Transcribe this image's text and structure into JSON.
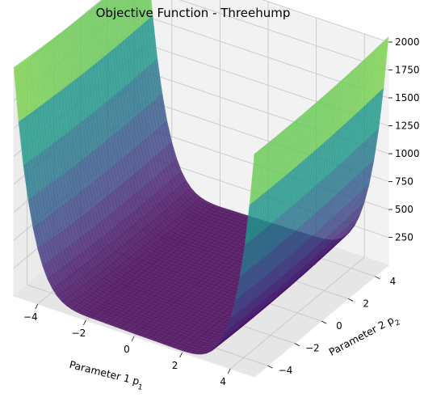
{
  "chart_data": {
    "type": "surface",
    "title": "Objective Function - Threehump",
    "xlabel": "Parameter 1 p",
    "xlabel_subscript": "1",
    "ylabel": "Parameter 2 p",
    "ylabel_subscript": "2",
    "zlabel": "",
    "xlim": [
      -5,
      5
    ],
    "ylim": [
      -5,
      5
    ],
    "zlim": [
      0,
      2000
    ],
    "x_ticks": [
      -4,
      -2,
      0,
      2,
      4
    ],
    "x_tick_labels": [
      "−4",
      "−2",
      "0",
      "2",
      "4"
    ],
    "y_ticks": [
      -4,
      -2,
      0,
      2,
      4
    ],
    "y_tick_labels": [
      "−4",
      "−2",
      "0",
      "2",
      "4"
    ],
    "z_ticks": [
      250,
      500,
      750,
      1000,
      1250,
      1500,
      1750,
      2000
    ],
    "z_tick_labels": [
      "250",
      "500",
      "750",
      "1000",
      "1250",
      "1500",
      "1750",
      "2000"
    ],
    "function": "2*p1^2 - 1.05*p1^4 + p1^6/6 + p1*p2 + p2^2",
    "colormap": "viridis",
    "grid": true,
    "grid_size": 50
  }
}
